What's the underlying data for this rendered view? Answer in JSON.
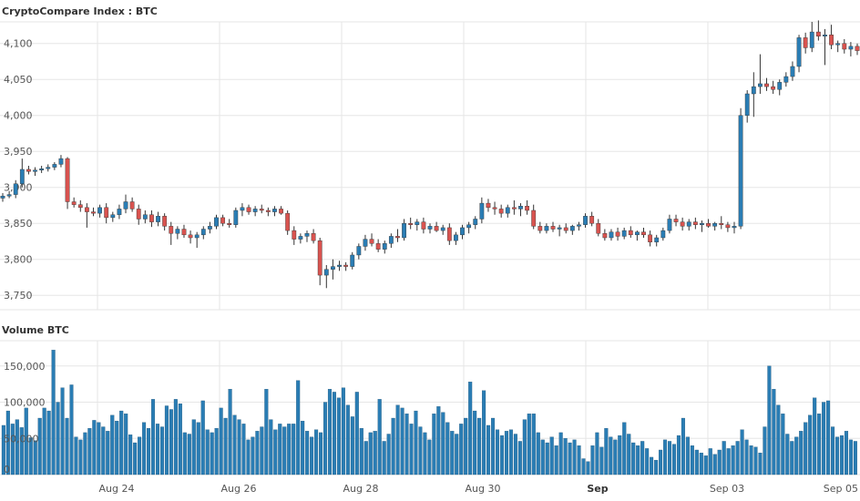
{
  "chart_data": [
    {
      "type": "candlestick",
      "title": "CryptoCompare Index : BTC",
      "y_ticks": [
        "3,750",
        "3,800",
        "3,850",
        "3,900",
        "3,950",
        "4,000",
        "4,050",
        "4,100"
      ],
      "y_tick_values": [
        3750,
        3800,
        3850,
        3900,
        3950,
        4000,
        4050,
        4100
      ],
      "ylim": [
        3730,
        4130
      ],
      "grid": true,
      "colors": {
        "up": "#2a7db4",
        "down": "#d9534f",
        "wick": "#333333",
        "grid": "#e6e6e6"
      },
      "x_labels": [
        "Aug 24",
        "Aug 26",
        "Aug 28",
        "Aug 30",
        "Sep",
        "Sep 03",
        "Sep 05"
      ],
      "x_label_bold": [
        false,
        false,
        false,
        false,
        true,
        false,
        false
      ],
      "candles": [
        [
          3885,
          3892,
          3880,
          3888
        ],
        [
          3888,
          3895,
          3885,
          3890
        ],
        [
          3890,
          3910,
          3885,
          3905
        ],
        [
          3905,
          3940,
          3900,
          3925
        ],
        [
          3925,
          3930,
          3918,
          3922
        ],
        [
          3922,
          3928,
          3916,
          3924
        ],
        [
          3924,
          3930,
          3920,
          3926
        ],
        [
          3926,
          3932,
          3922,
          3928
        ],
        [
          3928,
          3935,
          3924,
          3932
        ],
        [
          3932,
          3945,
          3928,
          3940
        ],
        [
          3940,
          3942,
          3870,
          3880
        ],
        [
          3880,
          3886,
          3872,
          3876
        ],
        [
          3876,
          3882,
          3866,
          3872
        ],
        [
          3872,
          3878,
          3844,
          3866
        ],
        [
          3866,
          3872,
          3860,
          3864
        ],
        [
          3864,
          3876,
          3858,
          3872
        ],
        [
          3872,
          3878,
          3850,
          3858
        ],
        [
          3858,
          3866,
          3852,
          3862
        ],
        [
          3862,
          3876,
          3856,
          3870
        ],
        [
          3870,
          3890,
          3864,
          3880
        ],
        [
          3880,
          3886,
          3866,
          3870
        ],
        [
          3870,
          3876,
          3848,
          3856
        ],
        [
          3856,
          3868,
          3850,
          3862
        ],
        [
          3862,
          3868,
          3845,
          3852
        ],
        [
          3852,
          3866,
          3846,
          3860
        ],
        [
          3860,
          3864,
          3840,
          3846
        ],
        [
          3846,
          3852,
          3820,
          3836
        ],
        [
          3836,
          3846,
          3828,
          3842
        ],
        [
          3842,
          3848,
          3830,
          3834
        ],
        [
          3834,
          3840,
          3822,
          3830
        ],
        [
          3830,
          3838,
          3816,
          3834
        ],
        [
          3834,
          3846,
          3828,
          3842
        ],
        [
          3842,
          3852,
          3836,
          3846
        ],
        [
          3846,
          3862,
          3842,
          3858
        ],
        [
          3858,
          3862,
          3846,
          3850
        ],
        [
          3850,
          3856,
          3844,
          3848
        ],
        [
          3848,
          3872,
          3844,
          3868
        ],
        [
          3868,
          3878,
          3860,
          3872
        ],
        [
          3872,
          3876,
          3862,
          3866
        ],
        [
          3866,
          3874,
          3860,
          3870
        ],
        [
          3870,
          3876,
          3864,
          3868
        ],
        [
          3868,
          3872,
          3860,
          3866
        ],
        [
          3866,
          3874,
          3860,
          3870
        ],
        [
          3870,
          3874,
          3862,
          3864
        ],
        [
          3864,
          3868,
          3834,
          3840
        ],
        [
          3840,
          3846,
          3820,
          3828
        ],
        [
          3828,
          3836,
          3822,
          3832
        ],
        [
          3832,
          3840,
          3824,
          3836
        ],
        [
          3836,
          3842,
          3822,
          3826
        ],
        [
          3826,
          3830,
          3764,
          3778
        ],
        [
          3778,
          3792,
          3760,
          3786
        ],
        [
          3786,
          3800,
          3772,
          3790
        ],
        [
          3790,
          3798,
          3784,
          3792
        ],
        [
          3792,
          3796,
          3784,
          3790
        ],
        [
          3790,
          3810,
          3786,
          3806
        ],
        [
          3806,
          3822,
          3800,
          3818
        ],
        [
          3818,
          3834,
          3812,
          3828
        ],
        [
          3828,
          3836,
          3818,
          3822
        ],
        [
          3822,
          3828,
          3810,
          3814
        ],
        [
          3814,
          3826,
          3808,
          3822
        ],
        [
          3822,
          3836,
          3816,
          3832
        ],
        [
          3832,
          3842,
          3824,
          3830
        ],
        [
          3830,
          3856,
          3826,
          3850
        ],
        [
          3850,
          3858,
          3842,
          3848
        ],
        [
          3848,
          3856,
          3840,
          3852
        ],
        [
          3852,
          3858,
          3836,
          3842
        ],
        [
          3842,
          3850,
          3836,
          3846
        ],
        [
          3846,
          3852,
          3838,
          3840
        ],
        [
          3840,
          3848,
          3834,
          3844
        ],
        [
          3844,
          3850,
          3820,
          3826
        ],
        [
          3826,
          3838,
          3820,
          3834
        ],
        [
          3834,
          3848,
          3828,
          3844
        ],
        [
          3844,
          3852,
          3836,
          3848
        ],
        [
          3848,
          3860,
          3842,
          3856
        ],
        [
          3856,
          3886,
          3850,
          3878
        ],
        [
          3878,
          3884,
          3866,
          3872
        ],
        [
          3872,
          3880,
          3862,
          3870
        ],
        [
          3870,
          3876,
          3858,
          3864
        ],
        [
          3864,
          3876,
          3858,
          3872
        ],
        [
          3872,
          3882,
          3862,
          3870
        ],
        [
          3870,
          3878,
          3860,
          3874
        ],
        [
          3874,
          3882,
          3862,
          3868
        ],
        [
          3868,
          3876,
          3842,
          3846
        ],
        [
          3846,
          3852,
          3836,
          3840
        ],
        [
          3840,
          3850,
          3836,
          3846
        ],
        [
          3846,
          3852,
          3838,
          3842
        ],
        [
          3842,
          3848,
          3832,
          3844
        ],
        [
          3844,
          3850,
          3836,
          3840
        ],
        [
          3840,
          3848,
          3834,
          3846
        ],
        [
          3846,
          3852,
          3840,
          3848
        ],
        [
          3848,
          3864,
          3844,
          3860
        ],
        [
          3860,
          3866,
          3846,
          3850
        ],
        [
          3850,
          3856,
          3832,
          3836
        ],
        [
          3836,
          3842,
          3826,
          3830
        ],
        [
          3830,
          3842,
          3826,
          3838
        ],
        [
          3838,
          3844,
          3826,
          3832
        ],
        [
          3832,
          3844,
          3828,
          3840
        ],
        [
          3840,
          3846,
          3830,
          3834
        ],
        [
          3834,
          3840,
          3826,
          3838
        ],
        [
          3838,
          3844,
          3830,
          3834
        ],
        [
          3834,
          3840,
          3818,
          3824
        ],
        [
          3824,
          3834,
          3818,
          3830
        ],
        [
          3830,
          3844,
          3826,
          3840
        ],
        [
          3840,
          3862,
          3836,
          3856
        ],
        [
          3856,
          3862,
          3846,
          3852
        ],
        [
          3852,
          3858,
          3840,
          3846
        ],
        [
          3846,
          3856,
          3840,
          3852
        ],
        [
          3852,
          3858,
          3842,
          3848
        ],
        [
          3848,
          3854,
          3838,
          3850
        ],
        [
          3850,
          3856,
          3844,
          3846
        ],
        [
          3846,
          3852,
          3840,
          3850
        ],
        [
          3850,
          3860,
          3842,
          3848
        ],
        [
          3848,
          3852,
          3838,
          3844
        ],
        [
          3844,
          3852,
          3836,
          3846
        ],
        [
          3846,
          4010,
          3842,
          4000
        ],
        [
          4000,
          4035,
          3990,
          4030
        ],
        [
          4030,
          4060,
          3998,
          4040
        ],
        [
          4040,
          4085,
          4030,
          4044
        ],
        [
          4044,
          4052,
          4034,
          4040
        ],
        [
          4040,
          4048,
          4030,
          4036
        ],
        [
          4036,
          4050,
          4028,
          4046
        ],
        [
          4046,
          4060,
          4040,
          4054
        ],
        [
          4054,
          4075,
          4048,
          4068
        ],
        [
          4068,
          4112,
          4060,
          4108
        ],
        [
          4108,
          4115,
          4086,
          4094
        ],
        [
          4094,
          4130,
          4088,
          4116
        ],
        [
          4116,
          4132,
          4104,
          4110
        ],
        [
          4110,
          4120,
          4070,
          4112
        ],
        [
          4112,
          4126,
          4092,
          4098
        ],
        [
          4098,
          4104,
          4088,
          4100
        ],
        [
          4100,
          4106,
          4086,
          4092
        ],
        [
          4092,
          4102,
          4082,
          4096
        ],
        [
          4096,
          4100,
          4084,
          4090
        ]
      ]
    },
    {
      "type": "bar",
      "title": "Volume BTC",
      "y_ticks": [
        "0",
        "50,000",
        "100,000",
        "150,000"
      ],
      "y_tick_values": [
        0,
        50000,
        100000,
        150000
      ],
      "ylim": [
        0,
        185000
      ],
      "grid": true,
      "color": "#2a7db4",
      "x_labels": [
        "Aug 24",
        "Aug 26",
        "Aug 28",
        "Aug 30",
        "Sep",
        "Sep 03",
        "Sep 05"
      ],
      "values": [
        68000,
        88000,
        70000,
        76000,
        65000,
        92000,
        51000,
        47000,
        78000,
        92000,
        88000,
        172000,
        100000,
        120000,
        78000,
        124000,
        52000,
        48000,
        58000,
        64000,
        75000,
        72000,
        66000,
        60000,
        82000,
        74000,
        88000,
        84000,
        55000,
        44000,
        52000,
        72000,
        64000,
        104000,
        70000,
        66000,
        95000,
        90000,
        104000,
        98000,
        58000,
        56000,
        76000,
        72000,
        102000,
        62000,
        58000,
        64000,
        92000,
        78000,
        118000,
        82000,
        76000,
        70000,
        48000,
        52000,
        60000,
        66000,
        118000,
        76000,
        62000,
        70000,
        66000,
        70000,
        70000,
        130000,
        74000,
        60000,
        52000,
        62000,
        58000,
        100000,
        118000,
        114000,
        106000,
        120000,
        96000,
        80000,
        114000,
        64000,
        46000,
        58000,
        60000,
        104000,
        46000,
        56000,
        78000,
        96000,
        92000,
        84000,
        70000,
        88000,
        66000,
        58000,
        48000,
        84000,
        94000,
        86000,
        72000,
        60000,
        56000,
        70000,
        78000,
        128000,
        88000,
        78000,
        116000,
        68000,
        78000,
        62000,
        54000,
        60000,
        62000,
        56000,
        46000,
        76000,
        84000,
        84000,
        58000,
        48000,
        44000,
        52000,
        40000,
        58000,
        50000,
        44000,
        48000,
        40000,
        22000,
        18000,
        40000,
        58000,
        38000,
        64000,
        52000,
        48000,
        54000,
        72000,
        56000,
        44000,
        40000,
        46000,
        36000,
        24000,
        20000,
        34000,
        48000,
        46000,
        42000,
        54000,
        78000,
        52000,
        40000,
        34000,
        30000,
        26000,
        36000,
        28000,
        34000,
        46000,
        36000,
        40000,
        46000,
        62000,
        48000,
        40000,
        38000,
        30000,
        66000,
        150000,
        118000,
        96000,
        84000,
        56000,
        46000,
        52000,
        60000,
        72000,
        82000,
        106000,
        84000,
        100000,
        102000,
        66000,
        52000,
        54000,
        60000,
        48000,
        46000
      ]
    }
  ]
}
